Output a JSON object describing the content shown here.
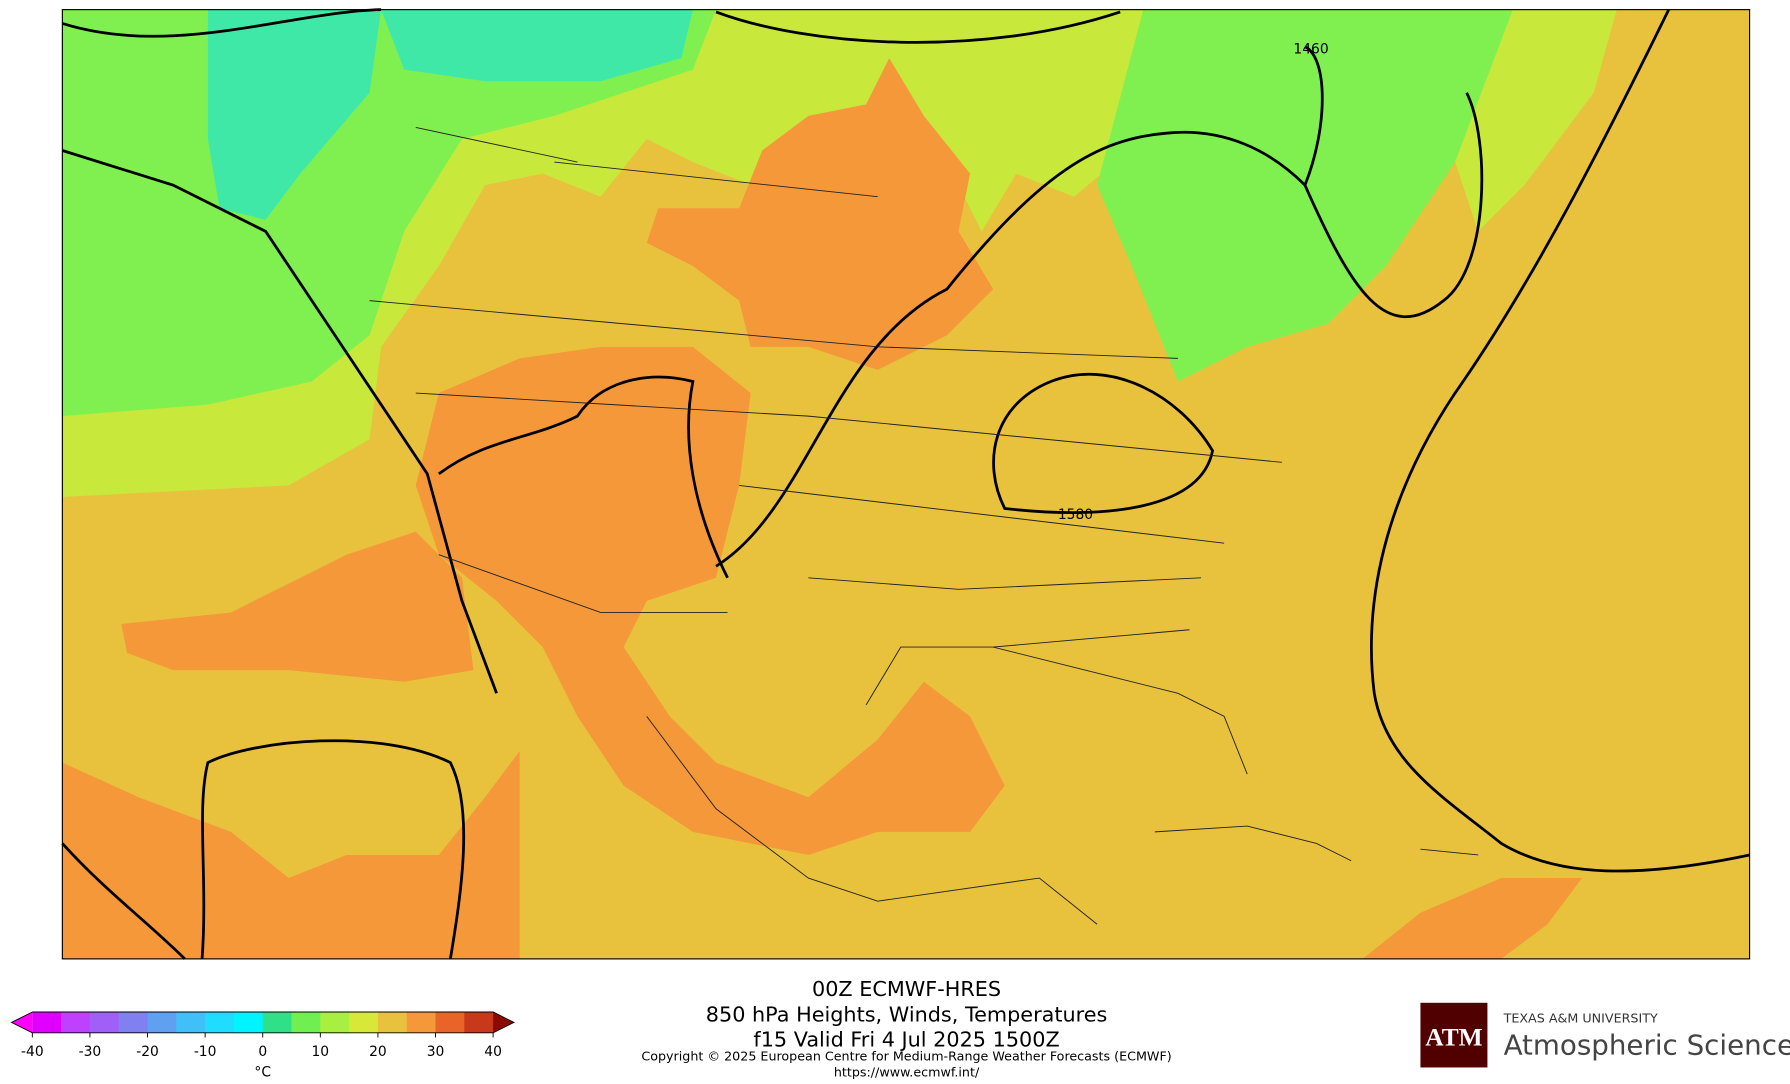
{
  "map": {
    "contour_labels": [
      "1460",
      "1580"
    ]
  },
  "title": {
    "lines": [
      "00Z ECMWF-HRES",
      "850 hPa Heights, Winds, Temperatures",
      "f15 Valid Fri 4 Jul 2025 1500Z"
    ]
  },
  "copyright": "Copyright © 2025 European Centre for Medium-Range Weather Forecasts (ECMWF)",
  "url": "https://www.ecmwf.int/",
  "colorbar": {
    "ticks": [
      -40,
      -30,
      -20,
      -10,
      0,
      10,
      20,
      30,
      40
    ],
    "unit": "°C",
    "under_color": "#ff00ff",
    "over_color": "#8b0a00",
    "colors": [
      "#e000ff",
      "#c040ff",
      "#a060f8",
      "#8080f0",
      "#60a0f0",
      "#40c0f8",
      "#20dcff",
      "#00f4ff",
      "#30e088",
      "#70f050",
      "#a8f040",
      "#d8e838",
      "#e8c23c",
      "#f5983a",
      "#e86428",
      "#c8381a"
    ]
  },
  "logo": {
    "mark": "ATM",
    "university": "TEXAS A&M UNIVERSITY",
    "department": "Atmospheric Sciences"
  }
}
